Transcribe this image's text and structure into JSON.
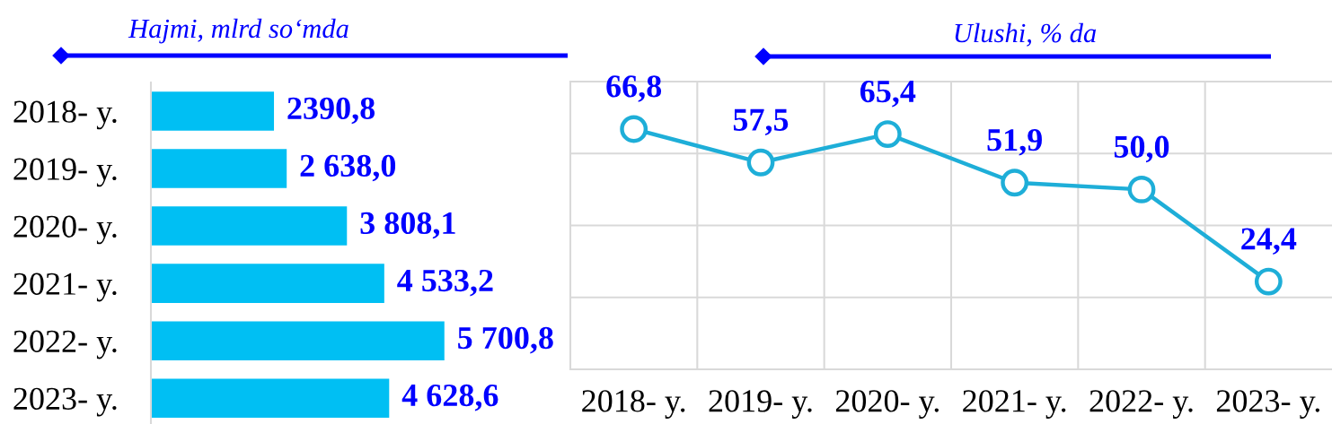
{
  "chart_data": [
    {
      "type": "bar",
      "orientation": "horizontal",
      "title": "Hajmi, mlrd so‘mda",
      "categories": [
        "2018- y.",
        "2019- y.",
        "2020- y.",
        "2021- y.",
        "2022- y.",
        "2023- y."
      ],
      "values": [
        2390.8,
        2638.0,
        3808.1,
        4533.2,
        5700.8,
        4628.6
      ],
      "value_labels": [
        "2390,8",
        "2 638,0",
        "3 808,1",
        "4 533,2",
        "5 700,8",
        "4 628,6"
      ],
      "color": "#00bff3",
      "tick_labels": "y"
    },
    {
      "type": "line",
      "title": "Ulushi, % da",
      "categories": [
        "2018- y.",
        "2019- y.",
        "2020- y.",
        "2021- y.",
        "2022- y.",
        "2023- y."
      ],
      "values": [
        66.8,
        57.5,
        65.4,
        51.9,
        50.0,
        24.4
      ],
      "value_labels": [
        "66,8",
        "57,5",
        "65,4",
        "51,9",
        "50,0",
        "24,4"
      ],
      "color": "#1eaed8",
      "marker": "circle",
      "line_style": "solid",
      "ylim": [
        0,
        80
      ],
      "yticks": [
        {
          "value": 0,
          "label": null
        },
        {
          "value": 20,
          "label": null
        },
        {
          "value": 40,
          "label": null
        },
        {
          "value": 60,
          "label": null
        },
        {
          "value": 80,
          "label": null
        }
      ],
      "grid": true,
      "tick_labels": "x"
    }
  ]
}
